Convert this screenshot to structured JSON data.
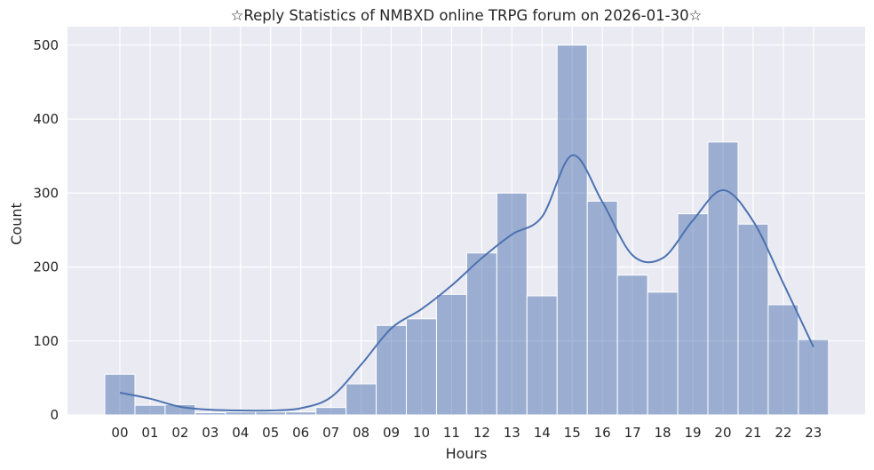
{
  "chart_data": {
    "type": "bar",
    "title": "☆Reply Statistics of NMBXD online TRPG forum on 2026-01-30☆",
    "xlabel": "Hours",
    "ylabel": "Count",
    "categories": [
      "00",
      "01",
      "02",
      "03",
      "04",
      "05",
      "06",
      "07",
      "08",
      "09",
      "10",
      "11",
      "12",
      "13",
      "14",
      "15",
      "16",
      "17",
      "18",
      "19",
      "20",
      "21",
      "22",
      "23"
    ],
    "values": [
      55,
      13,
      14,
      3,
      4,
      4,
      4,
      10,
      42,
      121,
      130,
      163,
      219,
      300,
      161,
      500,
      289,
      189,
      166,
      272,
      369,
      258,
      149,
      102
    ],
    "kde": [
      30,
      22,
      11,
      7,
      6,
      6,
      9,
      24,
      68,
      117,
      143,
      175,
      212,
      244,
      268,
      351,
      288,
      216,
      212,
      263,
      304,
      262,
      178,
      92
    ],
    "yticks": [
      0,
      100,
      200,
      300,
      400,
      500
    ],
    "ylim": [
      0,
      525
    ],
    "grid": true,
    "colors": {
      "bar_fill": "#4c72b0",
      "bar_opacity": 0.5,
      "bar_edge": "#ffffff",
      "kde_line": "#4c72b0",
      "plot_background": "#eaeaf2",
      "grid": "#ffffff"
    }
  }
}
